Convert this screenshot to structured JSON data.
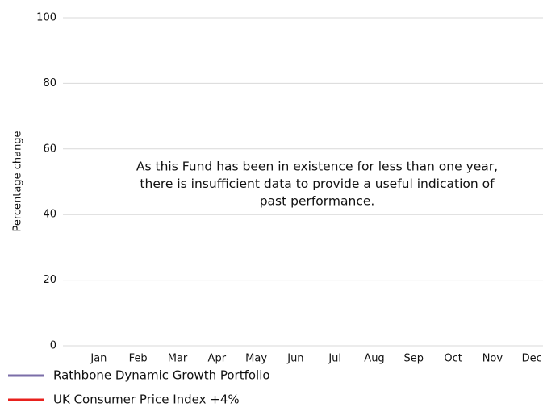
{
  "chart_data": {
    "type": "line",
    "ylabel": "Percentage change",
    "categories": [
      "Jan",
      "Feb",
      "Mar",
      "Apr",
      "May",
      "Jun",
      "Jul",
      "Aug",
      "Sep",
      "Oct",
      "Nov",
      "Dec"
    ],
    "series": [
      {
        "name": "Rathbone Dynamic Growth Portfolio",
        "color": "#7b6ea8",
        "values": [
          null,
          null,
          null,
          null,
          null,
          null,
          null,
          null,
          null,
          null,
          null,
          null
        ]
      },
      {
        "name": "UK Consumer Price Index +4%",
        "color": "#e8211d",
        "values": [
          null,
          null,
          null,
          null,
          null,
          null,
          null,
          null,
          null,
          null,
          null,
          null
        ]
      }
    ],
    "ylim": [
      0,
      100
    ],
    "yticks": [
      0,
      20,
      40,
      60,
      80,
      100
    ],
    "grid": true,
    "annotation": [
      "As this Fund has been in existence for less than one year,",
      "there is insufficient data to provide a useful indication of",
      "past performance."
    ]
  }
}
